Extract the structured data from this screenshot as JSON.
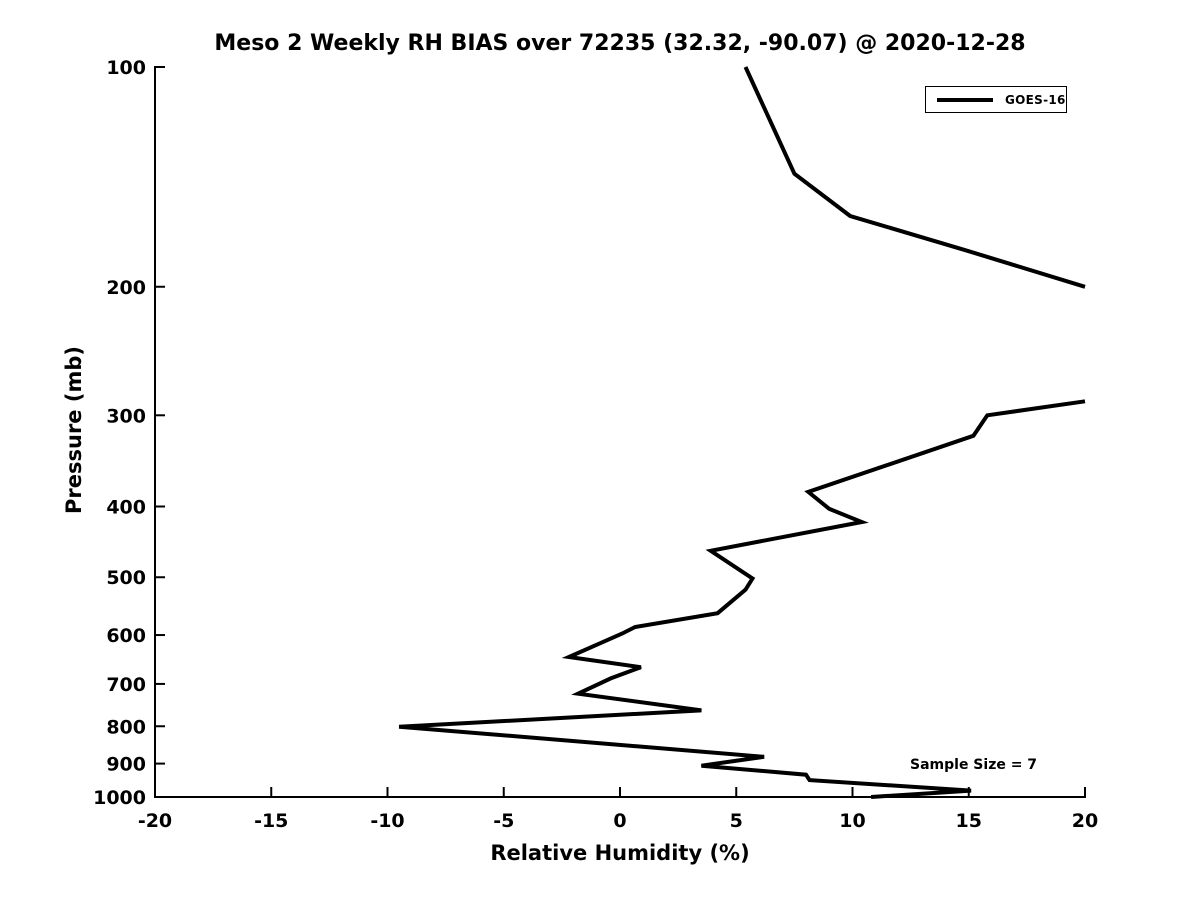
{
  "chart_data": {
    "type": "line",
    "title": "Meso 2 Weekly RH BIAS over 72235 (32.32, -90.07) @ 2020-12-28",
    "xlabel": "Relative Humidity (%)",
    "ylabel": "Pressure (mb)",
    "xlim": [
      -20,
      20
    ],
    "ylim": [
      1000,
      100
    ],
    "yscale": "log",
    "grid": false,
    "legend_position": "upper right",
    "xticks": [
      -20,
      -15,
      -10,
      -5,
      0,
      5,
      10,
      15,
      20
    ],
    "yticks": [
      100,
      200,
      300,
      400,
      500,
      600,
      700,
      800,
      900,
      1000
    ],
    "series": [
      {
        "name": "GOES-16",
        "color": "#000000",
        "line_width": 4,
        "segments": [
          [
            [
              5.4,
              100
            ],
            [
              7.5,
              140
            ],
            [
              9.9,
              160
            ],
            [
              14.8,
              178
            ],
            [
              20,
              200
            ]
          ],
          [
            [
              20,
              287
            ],
            [
              15.8,
              300
            ],
            [
              15.2,
              320
            ],
            [
              8.1,
              382
            ],
            [
              9.0,
              403
            ],
            [
              10.4,
              420
            ],
            [
              3.9,
              460
            ],
            [
              5.7,
              502
            ],
            [
              5.4,
              520
            ],
            [
              4.2,
              560
            ],
            [
              0.65,
              585
            ],
            [
              0.1,
              597
            ],
            [
              -2.2,
              643
            ],
            [
              0.9,
              664
            ],
            [
              -0.4,
              688
            ],
            [
              -1.8,
              722
            ],
            [
              3.5,
              761
            ],
            [
              -9.5,
              801
            ],
            [
              6.2,
              881
            ],
            [
              3.5,
              906
            ],
            [
              8.0,
              932
            ],
            [
              8.15,
              948
            ],
            [
              15.1,
              980
            ],
            [
              10.8,
              1000
            ]
          ]
        ]
      }
    ],
    "annotations": [
      {
        "text": "Sample Size = 7",
        "x": 10.5,
        "y": 900
      }
    ]
  }
}
